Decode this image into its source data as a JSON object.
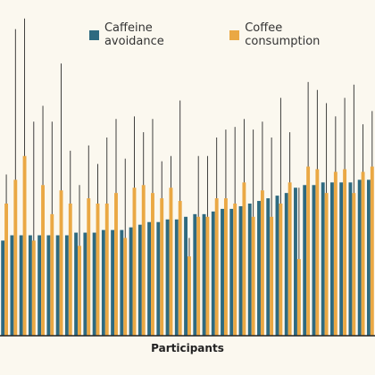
{
  "chart_data": {
    "type": "bar",
    "xlabel": "Participants",
    "ylabel": "",
    "title": "",
    "legend_position": "top-right",
    "grid": false,
    "ylim": [
      0,
      100
    ],
    "n_participants": 41,
    "series": [
      {
        "name": "Caffeine avoidance",
        "color": "#2e6a80",
        "values": [
          36,
          38,
          38,
          38,
          38,
          38,
          38,
          38,
          39,
          39,
          39,
          40,
          40,
          40,
          41,
          42,
          43,
          43,
          44,
          44,
          45,
          46,
          46,
          47,
          48,
          48,
          49,
          50,
          51,
          52,
          53,
          54,
          56,
          57,
          57,
          58,
          58,
          58,
          58,
          59,
          59
        ],
        "err_upper": [
          0,
          0,
          0,
          0,
          0,
          0,
          0,
          0,
          0,
          0,
          0,
          0,
          0,
          0,
          0,
          0,
          0,
          0,
          0,
          0,
          0,
          0,
          0,
          0,
          0,
          0,
          0,
          0,
          0,
          0,
          0,
          0,
          0,
          0,
          0,
          0,
          0,
          0,
          0,
          0,
          0
        ]
      },
      {
        "name": "Coffee consumption",
        "color": "#eaa844",
        "values": [
          50,
          59,
          68,
          36,
          57,
          46,
          55,
          50,
          34,
          52,
          50,
          50,
          54,
          37,
          56,
          57,
          54,
          52,
          56,
          51,
          30,
          45,
          45,
          52,
          52,
          50,
          58,
          45,
          55,
          45,
          50,
          58,
          29,
          64,
          63,
          54,
          62,
          63,
          54,
          62,
          64
        ],
        "err_upper": [
          11,
          57,
          52,
          45,
          30,
          35,
          48,
          20,
          23,
          20,
          15,
          25,
          28,
          30,
          27,
          20,
          28,
          14,
          12,
          38,
          7,
          23,
          23,
          23,
          26,
          29,
          24,
          33,
          26,
          30,
          40,
          19,
          27,
          32,
          30,
          34,
          21,
          27,
          41,
          18,
          21
        ]
      }
    ]
  }
}
